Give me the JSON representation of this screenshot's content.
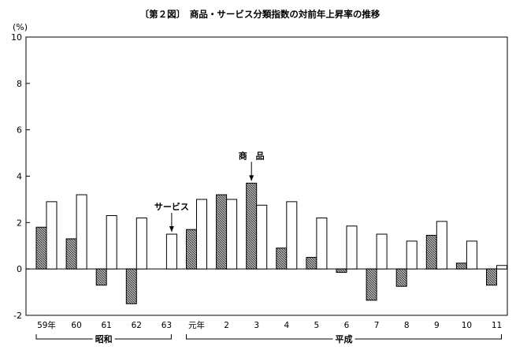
{
  "chart_data": {
    "type": "bar",
    "title": "〔第２図〕　商品・サービス分類指数の対前年上昇率の推移",
    "ylabel": "(%)",
    "ylim": [
      -2,
      10
    ],
    "yticks": [
      -2,
      0,
      2,
      4,
      6,
      8,
      10
    ],
    "grid": false,
    "categories": [
      "59年",
      "60",
      "61",
      "62",
      "63",
      "元年",
      "2",
      "3",
      "4",
      "5",
      "6",
      "7",
      "8",
      "9",
      "10",
      "11"
    ],
    "series": [
      {
        "name": "商品",
        "pattern": "hatched",
        "values": [
          1.8,
          1.3,
          -0.7,
          -1.5,
          0.0,
          1.7,
          3.2,
          3.7,
          0.9,
          0.5,
          -0.15,
          -1.35,
          -0.75,
          1.45,
          0.25,
          -0.7
        ]
      },
      {
        "name": "サービス",
        "pattern": "white",
        "values": [
          2.9,
          3.2,
          2.3,
          2.2,
          1.5,
          3.0,
          3.0,
          2.75,
          2.9,
          2.2,
          1.85,
          1.5,
          1.2,
          2.05,
          1.2,
          0.15
        ]
      }
    ],
    "eras": [
      {
        "label": "昭和",
        "from": 0,
        "to": 4
      },
      {
        "label": "平成",
        "from": 5,
        "to": 15
      }
    ],
    "annotations": [
      {
        "text": "商　品",
        "series": 0,
        "category": 7
      },
      {
        "text": "サービス",
        "series": 1,
        "category": 4
      }
    ]
  }
}
